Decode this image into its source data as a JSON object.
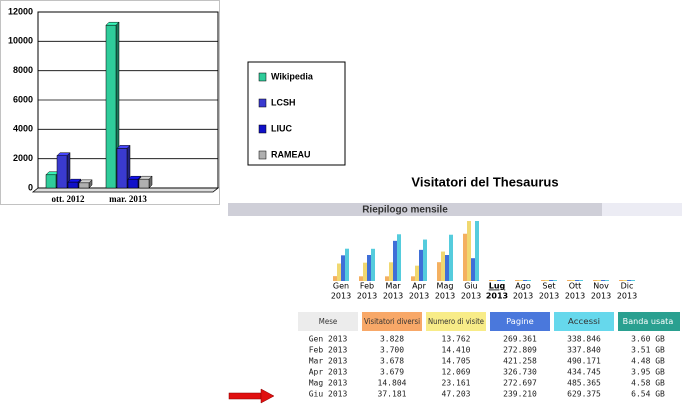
{
  "chart_data": [
    {
      "type": "bar3d",
      "categories": [
        "ott. 2012",
        "mar. 2013",
        null
      ],
      "series": [
        {
          "name": "Wikipedia",
          "color": "#2fcc9a",
          "values": [
            900,
            11100,
            null
          ]
        },
        {
          "name": "LCSH",
          "color": "#3a3ad0",
          "values": [
            2200,
            2700,
            null
          ]
        },
        {
          "name": "LIUC",
          "color": "#1010c8",
          "values": [
            400,
            600,
            null
          ]
        },
        {
          "name": "RAMEAU",
          "color": "#b0b0b0",
          "values": [
            350,
            600,
            null
          ]
        }
      ],
      "ylim": [
        0,
        12000
      ],
      "yticks": [
        0,
        2000,
        4000,
        6000,
        8000,
        10000,
        12000
      ],
      "grid": true
    },
    {
      "type": "monthly",
      "title": "Visitatori del Thesaurus",
      "subtitle": "Riepilogo mensile",
      "categories": [
        "Gen",
        "Feb",
        "Mar",
        "Apr",
        "Mag",
        "Giu",
        "Lug",
        "Ago",
        "Set",
        "Ott",
        "Nov",
        "Dic"
      ],
      "category_years": [
        "2013",
        "2013",
        "2013",
        "2013",
        "2013",
        "2013",
        "2013",
        "2013",
        "2013",
        "2013",
        "2013",
        "2013"
      ],
      "current": 6,
      "series": [
        {
          "name": "Visitatori diversi",
          "color": "#f4b060",
          "values": [
            3828,
            3700,
            3678,
            3679,
            14804,
            37181,
            null,
            null,
            null,
            null,
            null,
            null
          ]
        },
        {
          "name": "Numero di visite",
          "color": "#f0d870",
          "values": [
            13762,
            14410,
            14705,
            12069,
            23161,
            47203,
            null,
            null,
            null,
            null,
            null,
            null
          ]
        },
        {
          "name": "Pagine",
          "color": "#3f6fd8",
          "values": [
            269361,
            272809,
            421258,
            326730,
            272697,
            239210,
            null,
            null,
            null,
            null,
            null,
            null
          ]
        },
        {
          "name": "Accessi",
          "color": "#55ccdd",
          "values": [
            338846,
            337840,
            490171,
            434745,
            485365,
            629375,
            null,
            null,
            null,
            null,
            null,
            null
          ]
        }
      ]
    }
  ],
  "table": {
    "columns": [
      {
        "label": "Mese",
        "color": "#ececec"
      },
      {
        "label": "Visitatori diversi",
        "color": "#f8a868"
      },
      {
        "label": "Numero di visite",
        "color": "#f8ec88"
      },
      {
        "label": "Pagine",
        "color": "#4a78dc"
      },
      {
        "label": "Accessi",
        "color": "#66d8ec"
      },
      {
        "label": "Banda usata",
        "color": "#2aa090"
      }
    ],
    "rows": [
      [
        "Gen 2013",
        "3.828",
        "13.762",
        "269.361",
        "338.846",
        "3.60 GB"
      ],
      [
        "Feb 2013",
        "3.700",
        "14.410",
        "272.809",
        "337.840",
        "3.51 GB"
      ],
      [
        "Mar 2013",
        "3.678",
        "14.705",
        "421.258",
        "490.171",
        "4.48 GB"
      ],
      [
        "Apr 2013",
        "3.679",
        "12.069",
        "326.730",
        "434.745",
        "3.95 GB"
      ],
      [
        "Mag 2013",
        "14.804",
        "23.161",
        "272.697",
        "485.365",
        "4.58 GB"
      ],
      [
        "Giu 2013",
        "37.181",
        "47.203",
        "239.210",
        "629.375",
        "6.54 GB"
      ]
    ]
  }
}
